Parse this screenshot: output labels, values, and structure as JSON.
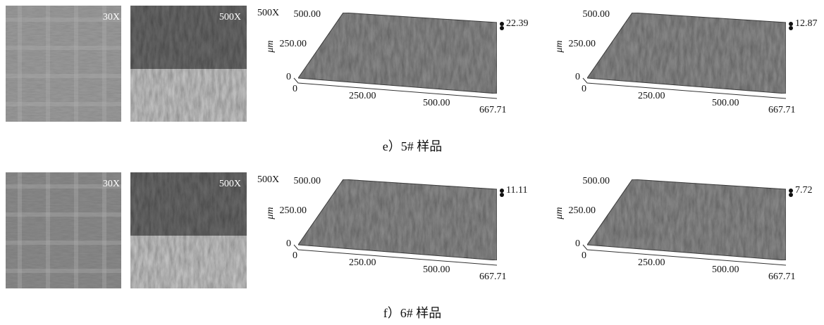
{
  "rows": [
    {
      "caption": "e）5# 样品",
      "micrographs": [
        {
          "label": "30X"
        },
        {
          "label": "500X"
        }
      ],
      "plots": [
        {
          "magnification": "500X",
          "unit": "μm",
          "y_ticks": [
            "500.00",
            "250.00",
            "0"
          ],
          "x_ticks": [
            "0",
            "250.00",
            "500.00",
            "667.71"
          ],
          "z_max": "22.39"
        },
        {
          "unit": "μm",
          "y_ticks": [
            "500.00",
            "250.00",
            "0"
          ],
          "x_ticks": [
            "0",
            "250.00",
            "500.00",
            "667.71"
          ],
          "z_max": "12.87"
        }
      ]
    },
    {
      "caption": "f）6# 样品",
      "micrographs": [
        {
          "label": "30X"
        },
        {
          "label": "500X"
        }
      ],
      "plots": [
        {
          "magnification": "500X",
          "unit": "μm",
          "y_ticks": [
            "500.00",
            "250.00",
            "0"
          ],
          "x_ticks": [
            "0",
            "250.00",
            "500.00",
            "667.71"
          ],
          "z_max": "11.11"
        },
        {
          "unit": "μm",
          "y_ticks": [
            "500.00",
            "250.00",
            "0"
          ],
          "x_ticks": [
            "0",
            "250.00",
            "500.00",
            "667.71"
          ],
          "z_max": "7.72"
        }
      ]
    }
  ]
}
